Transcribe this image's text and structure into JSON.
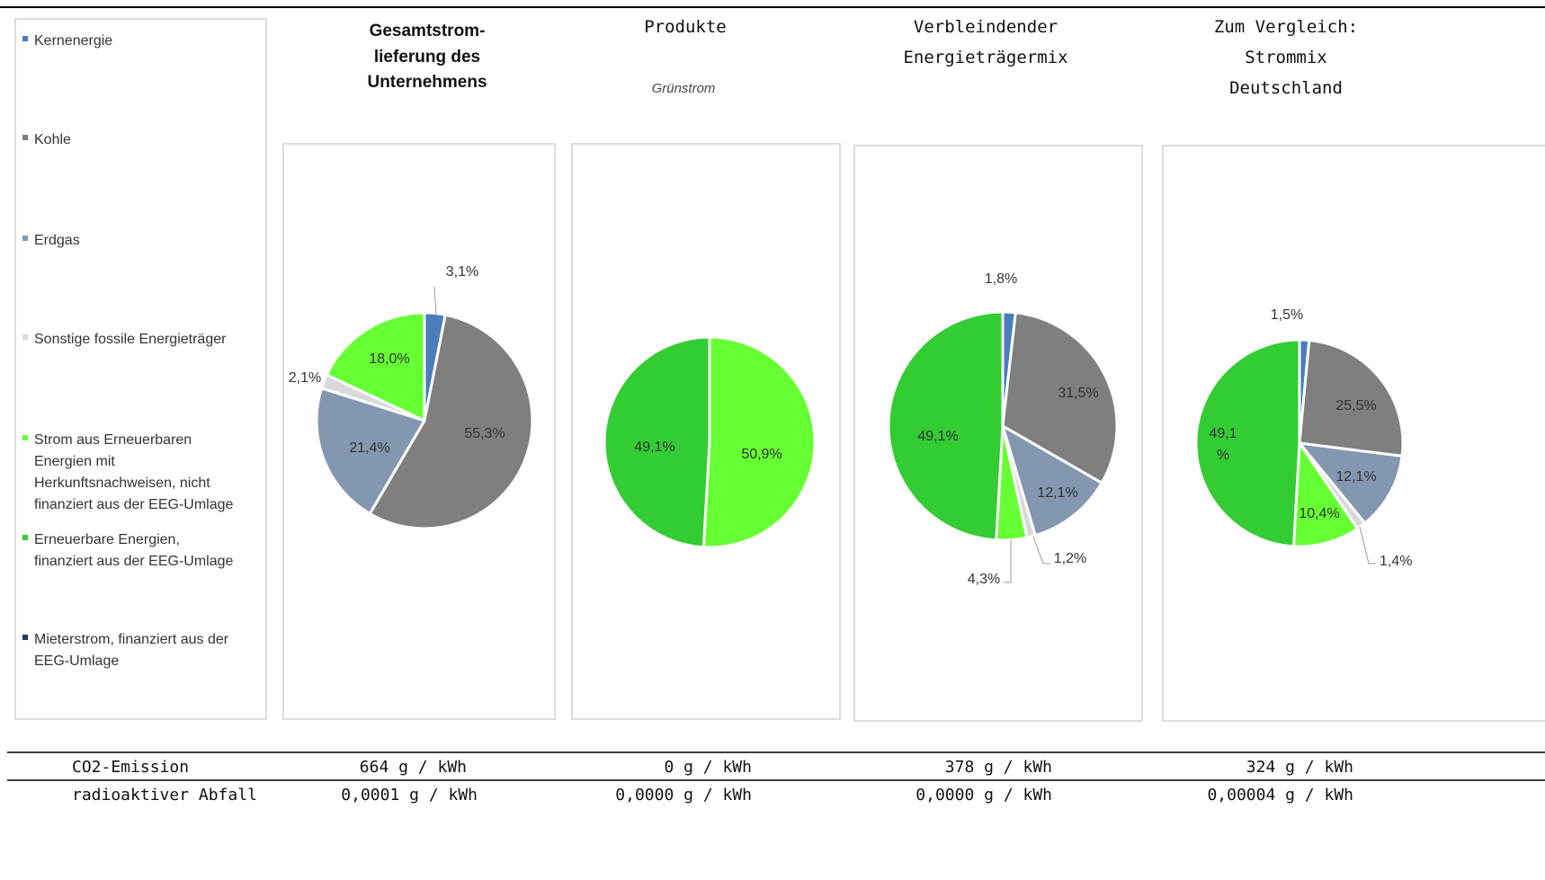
{
  "legend": {
    "items": [
      {
        "label": "Kernenergie",
        "color": "#4a7ebb"
      },
      {
        "label": "Kohle",
        "color": "#7f7f7f"
      },
      {
        "label": "Erdgas",
        "color": "#8497b0"
      },
      {
        "label": "Sonstige fossile Energieträger",
        "color": "#d9d9d9"
      },
      {
        "label": "Strom aus Erneuerbaren Energien mit Herkunftsnachweisen, nicht finanziert aus der EEG-Umlage",
        "color": "#66ff33"
      },
      {
        "label": "Erneuerbare Energien, finanziert aus der EEG-Umlage",
        "color": "#33cc33"
      },
      {
        "label": "Mieterstrom, finanziert aus der EEG-Umlage",
        "color": "#1f3864"
      }
    ]
  },
  "chart_data": [
    {
      "type": "pie",
      "title": "Gesamtstrom-lieferung des Unternehmens",
      "categories": [
        "Kernenergie",
        "Kohle",
        "Erdgas",
        "Sonstige fossile Energieträger",
        "Strom aus Erneuerbaren Energien mit Herkunftsnachweisen, nicht finanziert aus der EEG-Umlage"
      ],
      "values": [
        3.1,
        55.3,
        21.4,
        2.1,
        18.0
      ],
      "data_labels": [
        "3,1%",
        "55,3%",
        "21,4%",
        "2,1%",
        "18,0%"
      ]
    },
    {
      "type": "pie",
      "title": "Produkte",
      "subtitle": "Grünstrom",
      "categories": [
        "Strom aus Erneuerbaren Energien mit Herkunftsnachweisen, nicht finanziert aus der EEG-Umlage",
        "Erneuerbare Energien, finanziert aus der EEG-Umlage"
      ],
      "values": [
        50.9,
        49.1
      ],
      "data_labels": [
        "50,9%",
        "49,1%"
      ]
    },
    {
      "type": "pie",
      "title": "Verbleindender Energieträgermix",
      "categories": [
        "Kernenergie",
        "Kohle",
        "Erdgas",
        "Sonstige fossile Energieträger",
        "Strom aus Erneuerbaren Energien mit Herkunftsnachweisen, nicht finanziert aus der EEG-Umlage",
        "Erneuerbare Energien, finanziert aus der EEG-Umlage"
      ],
      "values": [
        1.8,
        31.5,
        12.1,
        1.2,
        4.3,
        49.1
      ],
      "data_labels": [
        "1,8%",
        "31,5%",
        "12,1%",
        "1,2%",
        "4,3%",
        "49,1%"
      ]
    },
    {
      "type": "pie",
      "title": "Zum Vergleich: Strommix Deutschland",
      "categories": [
        "Kernenergie",
        "Kohle",
        "Erdgas",
        "Sonstige fossile Energieträger",
        "Strom aus Erneuerbaren Energien mit Herkunftsnachweisen, nicht finanziert aus der EEG-Umlage",
        "Erneuerbare Energien, finanziert aus der EEG-Umlage"
      ],
      "values": [
        1.5,
        25.5,
        12.1,
        1.4,
        10.4,
        49.1
      ],
      "data_labels": [
        "1,5%",
        "25,5%",
        "12,1%",
        "1,4%",
        "10,4%",
        "49,1 %"
      ]
    }
  ],
  "table": {
    "rows": [
      {
        "label": "CO2-Emission",
        "values": [
          "664 g / kWh",
          "0 g / kWh",
          "378 g / kWh",
          "324 g / kWh"
        ]
      },
      {
        "label": "radioaktiver Abfall",
        "values": [
          "0,0001 g / kWh",
          "0,0000 g / kWh",
          "0,0000 g / kWh",
          "0,00004 g / kWh"
        ]
      }
    ]
  }
}
